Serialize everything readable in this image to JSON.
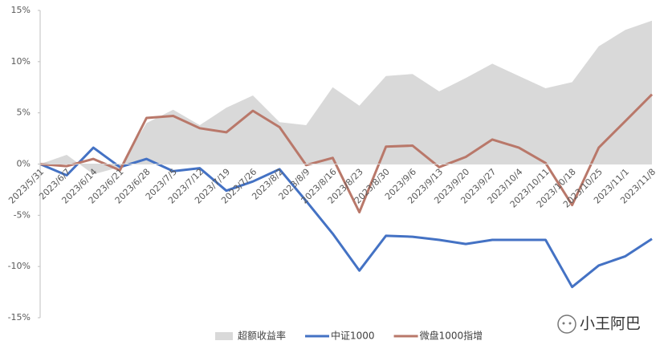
{
  "chart_data": {
    "type": "line",
    "categories": [
      "2023/5/31",
      "2023/6/7",
      "2023/6/14",
      "2023/6/21",
      "2023/6/28",
      "2023/7/5",
      "2023/7/12",
      "2023/7/19",
      "2023/7/26",
      "2023/8/2",
      "2023/8/9",
      "2023/8/16",
      "2023/8/23",
      "2023/8/30",
      "2023/9/6",
      "2023/9/13",
      "2023/9/20",
      "2023/9/27",
      "2023/10/4",
      "2023/10/11",
      "2023/10/18",
      "2023/10/25",
      "2023/11/1",
      "2023/11/8"
    ],
    "series": [
      {
        "name": "超额收益率",
        "kind": "area",
        "color": "#d9d9d9",
        "values": [
          0,
          0.9,
          -1.0,
          -0.3,
          4.0,
          5.3,
          3.8,
          5.5,
          6.7,
          4.1,
          3.8,
          7.5,
          5.7,
          8.6,
          8.8,
          7.1,
          8.4,
          9.8,
          8.6,
          7.4,
          8.0,
          11.5,
          13.1,
          14.0
        ]
      },
      {
        "name": "中证1000",
        "kind": "line",
        "color": "#4472c4",
        "values": [
          0,
          -1.1,
          1.6,
          -0.3,
          0.5,
          -0.7,
          -0.4,
          -2.6,
          -1.7,
          -0.5,
          -3.6,
          -6.8,
          -10.4,
          -7.0,
          -7.1,
          -7.4,
          -7.8,
          -7.4,
          -7.4,
          -7.4,
          -12.0,
          -9.9,
          -9.0,
          -7.3
        ]
      },
      {
        "name": "微盘1000指增",
        "kind": "line",
        "color": "#b9786a",
        "values": [
          0,
          -0.2,
          0.5,
          -0.6,
          4.5,
          4.7,
          3.5,
          3.1,
          5.2,
          3.6,
          -0.1,
          0.6,
          -4.7,
          1.7,
          1.8,
          -0.3,
          0.7,
          2.4,
          1.6,
          0.1,
          -4.0,
          1.6,
          4.2,
          6.8
        ]
      }
    ],
    "ylim": [
      -15,
      15
    ],
    "yticks": [
      {
        "value": -15,
        "label": "-15%"
      },
      {
        "value": -10,
        "label": "-10%"
      },
      {
        "value": -5,
        "label": "-5%"
      },
      {
        "value": 0,
        "label": "0%"
      },
      {
        "value": 5,
        "label": "5%"
      },
      {
        "value": 10,
        "label": "10%"
      },
      {
        "value": 15,
        "label": "15%"
      }
    ],
    "legend": "bottom",
    "watermark": "小王阿巴"
  }
}
